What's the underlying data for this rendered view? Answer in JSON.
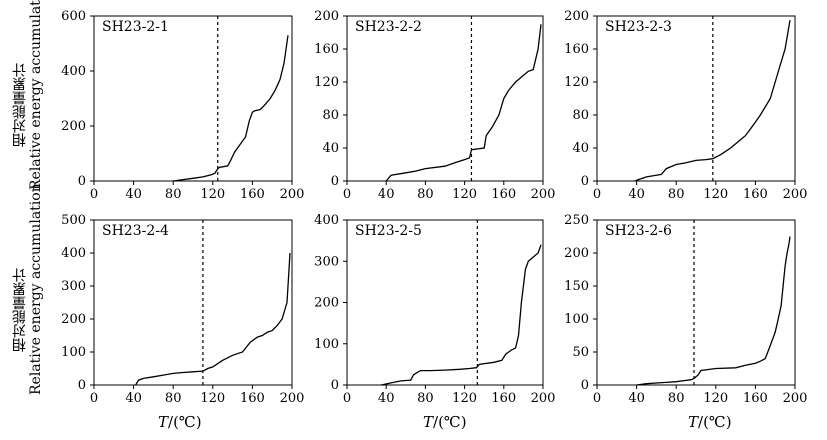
{
  "y_label_cn": "相对能量累计",
  "y_label_en": "Relative energy accumulation",
  "x_label_var": "T",
  "x_label_unit": "/(℃)",
  "chart_data": [
    {
      "type": "line",
      "panel_label": "SH23-2-1",
      "xlim": [
        0,
        200
      ],
      "ylim": [
        0,
        600
      ],
      "xticks": [
        0,
        40,
        80,
        120,
        160,
        200
      ],
      "yticks": [
        0,
        200,
        400,
        600
      ],
      "threshold_x": 125,
      "series": [
        {
          "x": [
            80,
            90,
            100,
            110,
            118,
            122,
            125,
            127,
            135,
            138,
            142,
            148,
            153,
            157,
            160,
            162,
            168,
            172,
            178,
            183,
            188,
            192,
            196
          ],
          "y": [
            0,
            5,
            10,
            15,
            22,
            28,
            45,
            50,
            55,
            75,
            105,
            135,
            160,
            220,
            250,
            255,
            260,
            275,
            300,
            330,
            370,
            430,
            530
          ]
        }
      ]
    },
    {
      "type": "line",
      "panel_label": "SH23-2-2",
      "xlim": [
        0,
        200
      ],
      "ylim": [
        0,
        200
      ],
      "xticks": [
        0,
        40,
        80,
        120,
        160,
        200
      ],
      "yticks": [
        0,
        40,
        80,
        120,
        160,
        200
      ],
      "threshold_x": 127,
      "series": [
        {
          "x": [
            40,
            45,
            60,
            70,
            80,
            100,
            110,
            120,
            125,
            127,
            140,
            142,
            148,
            155,
            160,
            165,
            172,
            180,
            185,
            190,
            195,
            198
          ],
          "y": [
            0,
            7,
            10,
            12,
            15,
            18,
            22,
            26,
            28,
            38,
            40,
            55,
            65,
            80,
            100,
            110,
            120,
            128,
            133,
            135,
            160,
            190
          ]
        }
      ]
    },
    {
      "type": "line",
      "panel_label": "SH23-2-3",
      "xlim": [
        0,
        200
      ],
      "ylim": [
        0,
        200
      ],
      "xticks": [
        0,
        40,
        80,
        120,
        160,
        200
      ],
      "yticks": [
        0,
        40,
        80,
        120,
        160,
        200
      ],
      "threshold_x": 117,
      "series": [
        {
          "x": [
            38,
            50,
            65,
            70,
            80,
            90,
            100,
            110,
            117,
            125,
            135,
            145,
            150,
            158,
            165,
            170,
            175,
            180,
            185,
            190,
            195
          ],
          "y": [
            0,
            5,
            8,
            15,
            20,
            22,
            25,
            26,
            27,
            32,
            40,
            50,
            55,
            68,
            80,
            90,
            100,
            120,
            140,
            160,
            195
          ]
        }
      ]
    },
    {
      "type": "line",
      "panel_label": "SH23-2-4",
      "xlim": [
        0,
        200
      ],
      "ylim": [
        0,
        500
      ],
      "xticks": [
        0,
        40,
        80,
        120,
        160,
        200
      ],
      "yticks": [
        0,
        100,
        200,
        300,
        400,
        500
      ],
      "threshold_x": 110,
      "series": [
        {
          "x": [
            42,
            45,
            50,
            60,
            70,
            80,
            90,
            100,
            110,
            115,
            120,
            125,
            130,
            140,
            150,
            158,
            165,
            170,
            175,
            180,
            185,
            190,
            195,
            198
          ],
          "y": [
            0,
            15,
            20,
            25,
            30,
            35,
            38,
            40,
            42,
            50,
            55,
            65,
            75,
            90,
            100,
            130,
            145,
            150,
            160,
            165,
            180,
            200,
            250,
            400
          ]
        }
      ]
    },
    {
      "type": "line",
      "panel_label": "SH23-2-5",
      "xlim": [
        0,
        200
      ],
      "ylim": [
        0,
        400
      ],
      "xticks": [
        0,
        40,
        80,
        120,
        160,
        200
      ],
      "yticks": [
        0,
        100,
        200,
        300,
        400
      ],
      "threshold_x": 133,
      "series": [
        {
          "x": [
            35,
            45,
            55,
            65,
            68,
            75,
            85,
            100,
            115,
            125,
            132,
            135,
            150,
            158,
            162,
            168,
            172,
            175,
            178,
            182,
            185,
            190,
            195,
            198
          ],
          "y": [
            0,
            5,
            10,
            12,
            25,
            35,
            35,
            36,
            38,
            40,
            42,
            50,
            55,
            60,
            75,
            85,
            90,
            120,
            200,
            280,
            300,
            310,
            320,
            340
          ]
        }
      ]
    },
    {
      "type": "line",
      "panel_label": "SH23-2-6",
      "xlim": [
        0,
        200
      ],
      "ylim": [
        0,
        250
      ],
      "xticks": [
        0,
        40,
        80,
        120,
        160,
        200
      ],
      "yticks": [
        0,
        50,
        100,
        150,
        200,
        250
      ],
      "threshold_x": 98,
      "series": [
        {
          "x": [
            40,
            50,
            60,
            70,
            80,
            90,
            95,
            98,
            102,
            105,
            120,
            140,
            150,
            160,
            165,
            170,
            175,
            180,
            183,
            186,
            188,
            190,
            192,
            194,
            195
          ],
          "y": [
            0,
            2,
            3,
            4,
            5,
            7,
            8,
            10,
            15,
            22,
            25,
            26,
            30,
            33,
            36,
            40,
            60,
            80,
            100,
            120,
            150,
            180,
            200,
            215,
            225
          ]
        }
      ]
    }
  ]
}
